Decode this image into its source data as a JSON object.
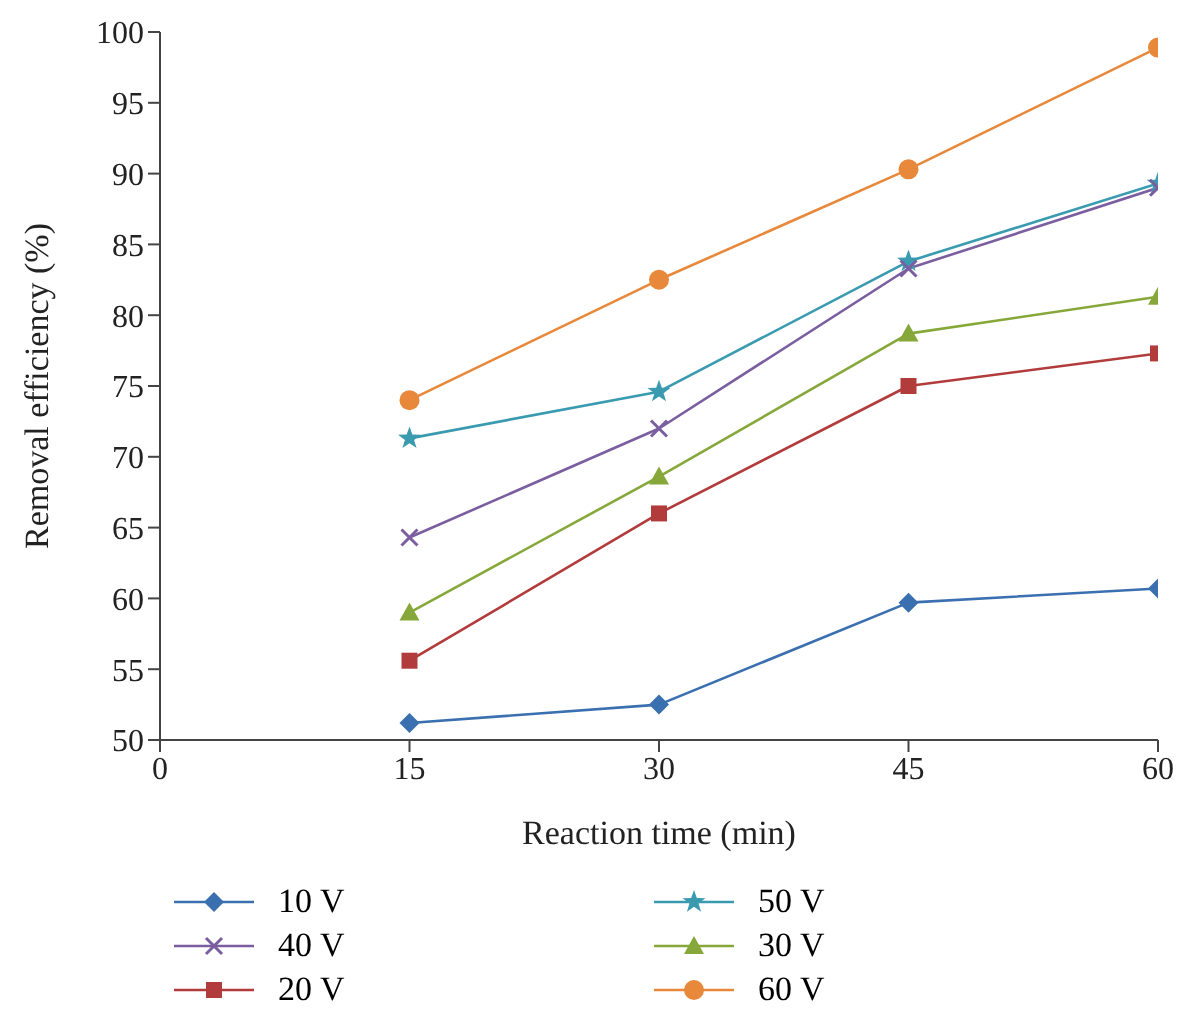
{
  "chart_data": {
    "type": "line",
    "xlabel": "Reaction time (min)",
    "ylabel": "Removal efficiency (%)",
    "x": [
      15,
      30,
      45,
      60
    ],
    "xlim": [
      0,
      60
    ],
    "xticks": [
      0,
      15,
      30,
      45,
      60
    ],
    "ylim": [
      50,
      100
    ],
    "yticks": [
      50,
      55,
      60,
      65,
      70,
      75,
      80,
      85,
      90,
      95,
      100
    ],
    "grid": false,
    "legend": "bottom",
    "series": [
      {
        "name": "10 V",
        "color": "#3a6fb0",
        "marker": "diamond",
        "values": [
          51.2,
          52.5,
          59.7,
          60.7
        ]
      },
      {
        "name": "50 V",
        "color": "#3a9bb0",
        "marker": "star",
        "values": [
          71.3,
          74.6,
          83.8,
          89.3
        ]
      },
      {
        "name": "40 V",
        "color": "#7b5ea0",
        "marker": "cross",
        "values": [
          64.3,
          72.0,
          83.3,
          89.0
        ]
      },
      {
        "name": "30 V",
        "color": "#86a83a",
        "marker": "triangle",
        "values": [
          59.0,
          68.6,
          78.7,
          81.3
        ]
      },
      {
        "name": "20 V",
        "color": "#b23b3b",
        "marker": "square",
        "values": [
          55.6,
          66.0,
          75.0,
          77.3
        ]
      },
      {
        "name": "60 V",
        "color": "#e8883a",
        "marker": "circle",
        "values": [
          74.0,
          82.5,
          90.3,
          98.9
        ]
      }
    ]
  }
}
